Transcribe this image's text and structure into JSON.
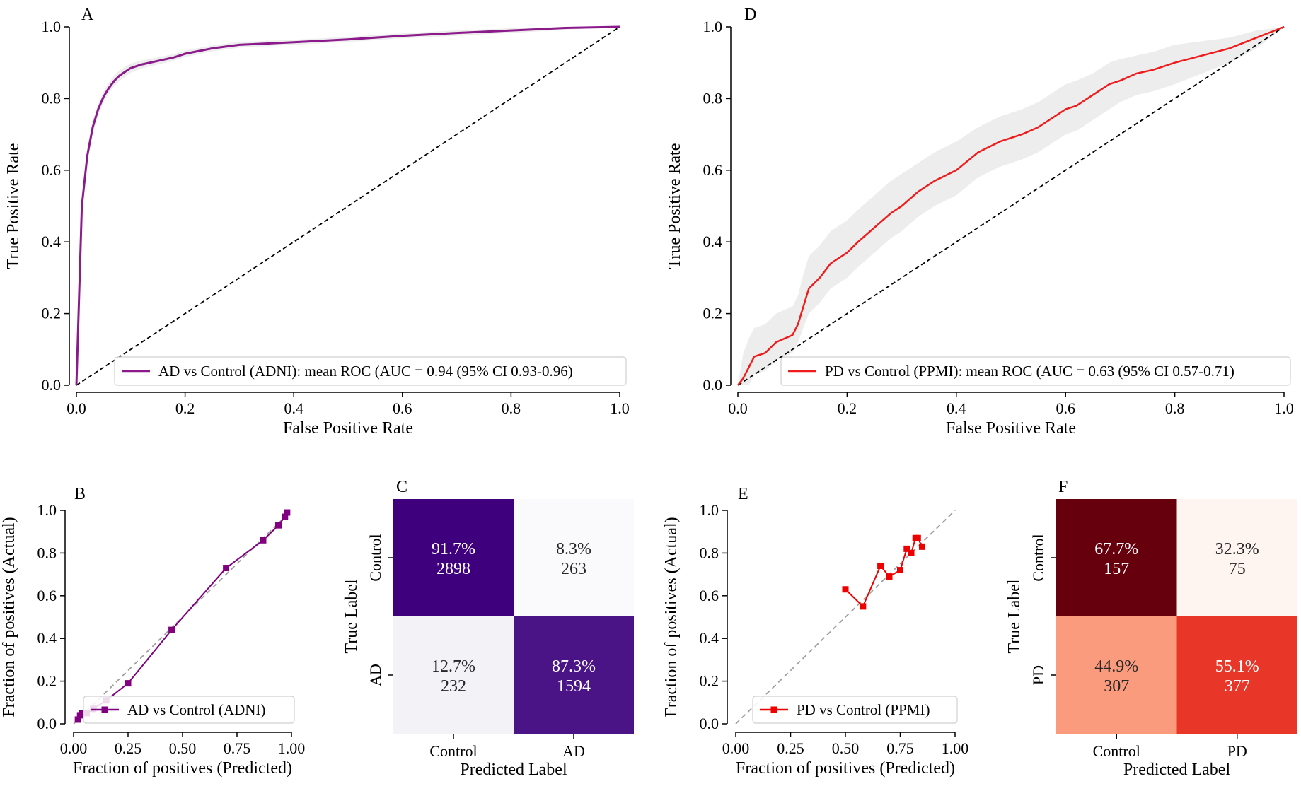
{
  "chart_data": [
    {
      "panel": "A",
      "type": "line",
      "xlabel": "False Positive Rate",
      "ylabel": "True Positive Rate",
      "xlim": [
        0,
        1
      ],
      "ylim": [
        0,
        1
      ],
      "xticks": [
        "0.0",
        "0.2",
        "0.4",
        "0.6",
        "0.8",
        "1.0"
      ],
      "yticks": [
        "0.0",
        "0.2",
        "0.4",
        "0.6",
        "0.8",
        "1.0"
      ],
      "legend_position": "lower right",
      "color": "#8b1a8b",
      "series": [
        {
          "name": "AD vs Control (ADNI): mean ROC (AUC = 0.94 (95% CI 0.93-0.96)",
          "x": [
            0,
            0.01,
            0.02,
            0.03,
            0.04,
            0.05,
            0.06,
            0.07,
            0.08,
            0.1,
            0.12,
            0.15,
            0.18,
            0.2,
            0.25,
            0.3,
            0.4,
            0.5,
            0.6,
            0.7,
            0.8,
            0.9,
            1.0
          ],
          "y": [
            0,
            0.5,
            0.64,
            0.72,
            0.77,
            0.805,
            0.83,
            0.85,
            0.865,
            0.885,
            0.895,
            0.905,
            0.915,
            0.925,
            0.94,
            0.95,
            0.957,
            0.965,
            0.975,
            0.983,
            0.99,
            0.997,
            1.0
          ],
          "lower": [
            0,
            0.48,
            0.62,
            0.7,
            0.755,
            0.79,
            0.815,
            0.835,
            0.85,
            0.872,
            0.884,
            0.895,
            0.906,
            0.916,
            0.932,
            0.942,
            0.95,
            0.958,
            0.968,
            0.975,
            0.983,
            0.992,
            1.0
          ],
          "upper": [
            0,
            0.52,
            0.66,
            0.74,
            0.785,
            0.82,
            0.845,
            0.865,
            0.88,
            0.898,
            0.906,
            0.915,
            0.924,
            0.934,
            0.948,
            0.958,
            0.964,
            0.972,
            0.982,
            0.99,
            0.996,
            1.0,
            1.0
          ]
        }
      ],
      "reference_line": "chance diagonal"
    },
    {
      "panel": "B",
      "type": "line",
      "xlabel": "Fraction of positives (Predicted)",
      "ylabel": "Fraction of positives (Actual)",
      "xlim": [
        0,
        1
      ],
      "ylim": [
        0,
        1
      ],
      "xticks": [
        "0.00",
        "0.25",
        "0.50",
        "0.75",
        "1.00"
      ],
      "yticks": [
        "0.0",
        "0.2",
        "0.4",
        "0.6",
        "0.8",
        "1.0"
      ],
      "legend_position": "lower right",
      "color": "#800080",
      "series": [
        {
          "name": "AD vs Control (ADNI)",
          "x": [
            0.02,
            0.03,
            0.04,
            0.06,
            0.09,
            0.15,
            0.25,
            0.45,
            0.7,
            0.87,
            0.94,
            0.97,
            0.98
          ],
          "y": [
            0.02,
            0.04,
            0.05,
            0.05,
            0.07,
            0.11,
            0.19,
            0.44,
            0.73,
            0.86,
            0.93,
            0.97,
            0.99
          ]
        }
      ],
      "reference_line": "perfect calibration"
    },
    {
      "panel": "C",
      "type": "heatmap",
      "xlabel": "Predicted Label",
      "ylabel": "True Label",
      "x_categories": [
        "Control",
        "AD"
      ],
      "y_categories": [
        "Control",
        "AD"
      ],
      "cells": [
        [
          {
            "pct": "91.7%",
            "count": "2898",
            "value": 0.917,
            "color": "#3f007d"
          },
          {
            "pct": "8.3%",
            "count": "263",
            "value": 0.083,
            "color": "#faf9fc"
          }
        ],
        [
          {
            "pct": "12.7%",
            "count": "232",
            "value": 0.127,
            "color": "#f3f2f7"
          },
          {
            "pct": "87.3%",
            "count": "1594",
            "value": 0.873,
            "color": "#4a1486"
          }
        ]
      ]
    },
    {
      "panel": "D",
      "type": "line",
      "xlabel": "False Positive Rate",
      "ylabel": "True Positive Rate",
      "xlim": [
        0,
        1
      ],
      "ylim": [
        0,
        1
      ],
      "xticks": [
        "0.0",
        "0.2",
        "0.4",
        "0.6",
        "0.8",
        "1.0"
      ],
      "yticks": [
        "0.0",
        "0.2",
        "0.4",
        "0.6",
        "0.8",
        "1.0"
      ],
      "legend_position": "lower right",
      "color": "#ee1c1c",
      "series": [
        {
          "name": "PD vs Control (PPMI): mean ROC (AUC = 0.63 (95% CI 0.57-0.71)",
          "x": [
            0,
            0.01,
            0.02,
            0.03,
            0.05,
            0.07,
            0.1,
            0.11,
            0.12,
            0.13,
            0.15,
            0.17,
            0.2,
            0.22,
            0.25,
            0.28,
            0.3,
            0.33,
            0.36,
            0.4,
            0.44,
            0.48,
            0.52,
            0.55,
            0.58,
            0.6,
            0.62,
            0.65,
            0.68,
            0.7,
            0.73,
            0.76,
            0.8,
            0.85,
            0.9,
            0.95,
            1.0
          ],
          "y": [
            0,
            0.02,
            0.05,
            0.08,
            0.09,
            0.12,
            0.14,
            0.17,
            0.22,
            0.27,
            0.3,
            0.34,
            0.37,
            0.4,
            0.44,
            0.48,
            0.5,
            0.54,
            0.57,
            0.6,
            0.65,
            0.68,
            0.7,
            0.72,
            0.75,
            0.77,
            0.78,
            0.81,
            0.84,
            0.85,
            0.87,
            0.88,
            0.9,
            0.92,
            0.94,
            0.97,
            1.0
          ],
          "lower": [
            0,
            0,
            0.0,
            0.03,
            0.04,
            0.07,
            0.09,
            0.12,
            0.16,
            0.2,
            0.23,
            0.27,
            0.3,
            0.33,
            0.37,
            0.41,
            0.43,
            0.47,
            0.5,
            0.53,
            0.58,
            0.61,
            0.63,
            0.65,
            0.68,
            0.7,
            0.71,
            0.74,
            0.77,
            0.79,
            0.81,
            0.82,
            0.84,
            0.87,
            0.9,
            0.94,
            1.0
          ],
          "upper": [
            0,
            0.09,
            0.13,
            0.16,
            0.17,
            0.2,
            0.22,
            0.25,
            0.31,
            0.36,
            0.39,
            0.43,
            0.46,
            0.49,
            0.53,
            0.57,
            0.59,
            0.62,
            0.65,
            0.68,
            0.72,
            0.75,
            0.77,
            0.79,
            0.82,
            0.84,
            0.85,
            0.87,
            0.9,
            0.91,
            0.92,
            0.93,
            0.95,
            0.96,
            0.97,
            0.99,
            1.0
          ]
        }
      ],
      "reference_line": "chance diagonal"
    },
    {
      "panel": "E",
      "type": "line",
      "xlabel": "Fraction of positives (Predicted)",
      "ylabel": "Fraction of positives (Actual)",
      "xlim": [
        0,
        1
      ],
      "ylim": [
        0,
        1
      ],
      "xticks": [
        "0.00",
        "0.25",
        "0.50",
        "0.75",
        "1.00"
      ],
      "yticks": [
        "0.0",
        "0.2",
        "0.4",
        "0.6",
        "0.8",
        "1.0"
      ],
      "legend_position": "lower left",
      "color": "#ee0000",
      "series": [
        {
          "name": "PD vs Control (PPMI)",
          "x": [
            0.5,
            0.58,
            0.66,
            0.7,
            0.75,
            0.78,
            0.8,
            0.82,
            0.83,
            0.85
          ],
          "y": [
            0.63,
            0.55,
            0.74,
            0.69,
            0.72,
            0.82,
            0.8,
            0.87,
            0.87,
            0.83
          ]
        }
      ],
      "reference_line": "perfect calibration"
    },
    {
      "panel": "F",
      "type": "heatmap",
      "xlabel": "Predicted Label",
      "ylabel": "True Label",
      "x_categories": [
        "Control",
        "PD"
      ],
      "y_categories": [
        "Control",
        "PD"
      ],
      "cells": [
        [
          {
            "pct": "67.7%",
            "count": "157",
            "value": 0.677,
            "color": "#67000d"
          },
          {
            "pct": "32.3%",
            "count": "75",
            "value": 0.323,
            "color": "#fff5f0"
          }
        ],
        [
          {
            "pct": "44.9%",
            "count": "307",
            "value": 0.449,
            "color": "#fb9b7e"
          },
          {
            "pct": "55.1%",
            "count": "377",
            "value": 0.551,
            "color": "#e83729"
          }
        ]
      ]
    }
  ]
}
